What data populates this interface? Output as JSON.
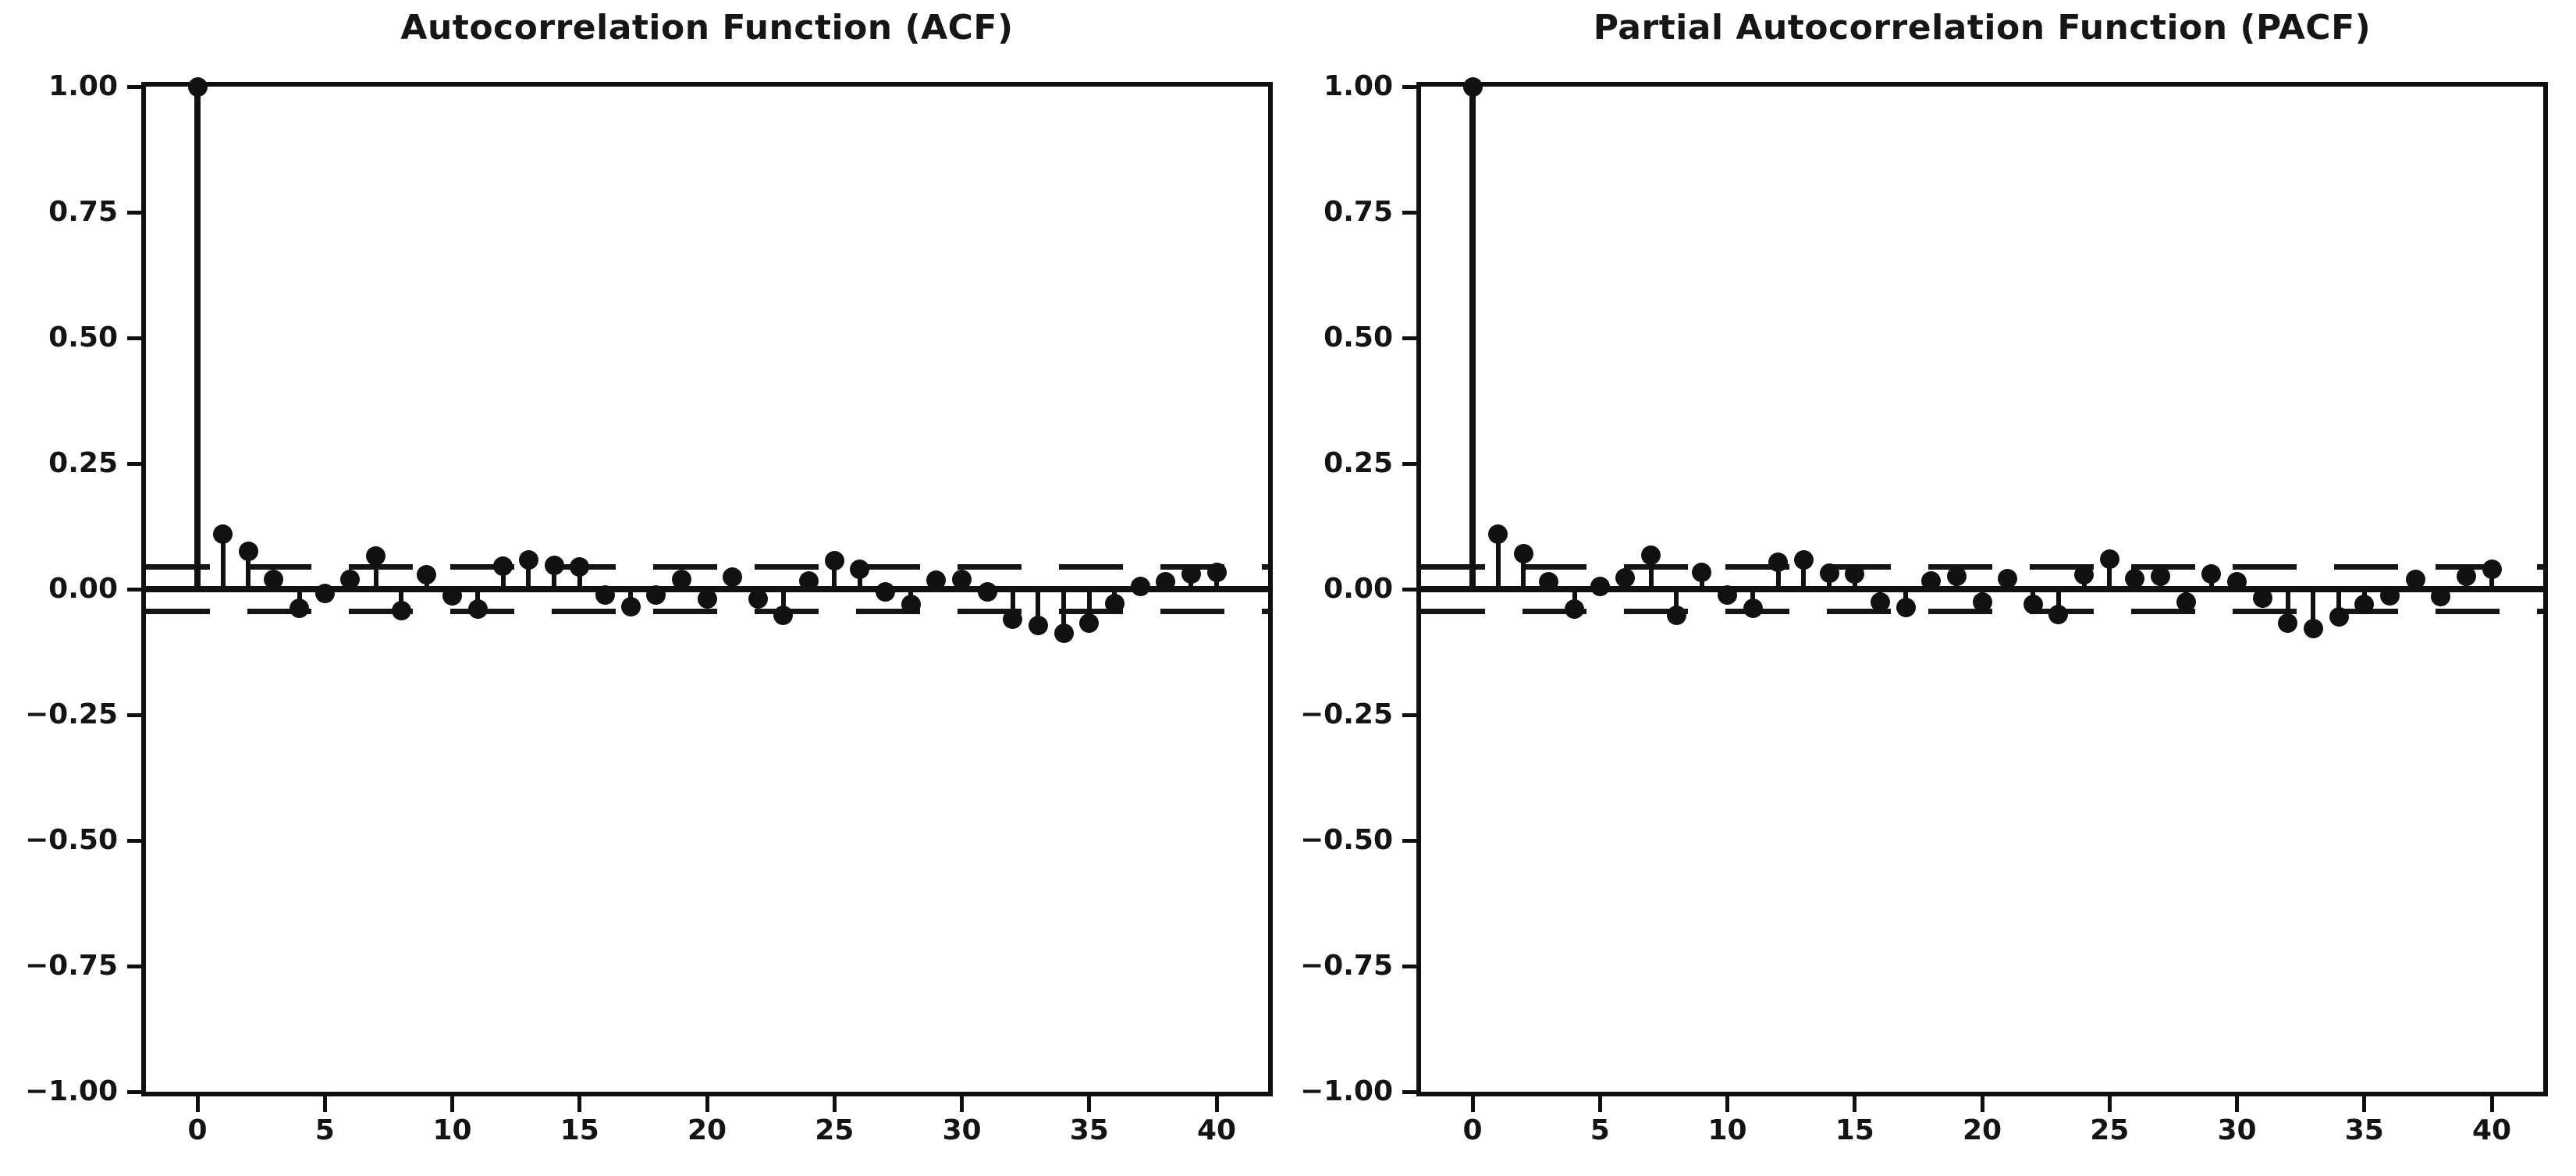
{
  "figure": {
    "background": "#ffffff",
    "ink_color": "#111111"
  },
  "chart_data": [
    {
      "type": "stem",
      "title": "Autocorrelation Function (ACF)",
      "xlabel": "",
      "ylabel": "",
      "lag_start": 0,
      "lag_end": 40,
      "values": [
        1.0,
        0.11,
        0.075,
        0.02,
        -0.038,
        -0.008,
        0.02,
        0.066,
        -0.043,
        0.028,
        -0.013,
        -0.04,
        0.046,
        0.058,
        0.048,
        0.045,
        -0.012,
        -0.035,
        -0.012,
        0.02,
        -0.02,
        0.024,
        -0.02,
        -0.052,
        0.016,
        0.056,
        0.04,
        -0.006,
        -0.03,
        0.018,
        0.02,
        -0.006,
        -0.06,
        -0.072,
        -0.088,
        -0.068,
        -0.028,
        0.005,
        0.015,
        0.03,
        0.034
      ],
      "confidence_interval": 0.045,
      "confidence_line_style": "dashed",
      "ylim": [
        -1.0,
        1.0
      ],
      "yticks": [
        1.0,
        0.75,
        0.5,
        0.25,
        0.0,
        -0.25,
        -0.5,
        -0.75,
        -1.0
      ],
      "ytick_labels": [
        "1.00",
        "0.75",
        "0.50",
        "0.25",
        "0.00",
        "−0.25",
        "−0.50",
        "−0.75",
        "−1.00"
      ],
      "xticks": [
        0,
        5,
        10,
        15,
        20,
        25,
        30,
        35,
        40
      ],
      "xtick_labels": [
        "0",
        "5",
        "10",
        "15",
        "20",
        "25",
        "30",
        "35",
        "40"
      ],
      "grid": false,
      "legend": null,
      "marker_color": "#111111",
      "line_color": "#111111"
    },
    {
      "type": "stem",
      "title": "Partial Autocorrelation Function (PACF)",
      "xlabel": "",
      "ylabel": "",
      "lag_start": 0,
      "lag_end": 40,
      "values": [
        1.0,
        0.11,
        0.07,
        0.014,
        -0.04,
        0.006,
        0.023,
        0.068,
        -0.052,
        0.034,
        -0.012,
        -0.038,
        0.053,
        0.058,
        0.032,
        0.031,
        -0.025,
        -0.036,
        0.016,
        0.026,
        -0.025,
        0.021,
        -0.03,
        -0.05,
        0.028,
        0.06,
        0.021,
        0.026,
        -0.025,
        0.03,
        0.015,
        -0.018,
        -0.068,
        -0.078,
        -0.055,
        -0.03,
        -0.013,
        0.02,
        -0.015,
        0.026,
        0.04
      ],
      "confidence_interval": 0.045,
      "confidence_line_style": "dashed",
      "ylim": [
        -1.0,
        1.0
      ],
      "yticks": [
        1.0,
        0.75,
        0.5,
        0.25,
        0.0,
        -0.25,
        -0.5,
        -0.75,
        -1.0
      ],
      "ytick_labels": [
        "1.00",
        "0.75",
        "0.50",
        "0.25",
        "0.00",
        "−0.25",
        "−0.50",
        "−0.75",
        "−1.00"
      ],
      "xticks": [
        0,
        5,
        10,
        15,
        20,
        25,
        30,
        35,
        40
      ],
      "xtick_labels": [
        "0",
        "5",
        "10",
        "15",
        "20",
        "25",
        "30",
        "35",
        "40"
      ],
      "grid": false,
      "legend": null,
      "marker_color": "#111111",
      "line_color": "#111111"
    }
  ]
}
